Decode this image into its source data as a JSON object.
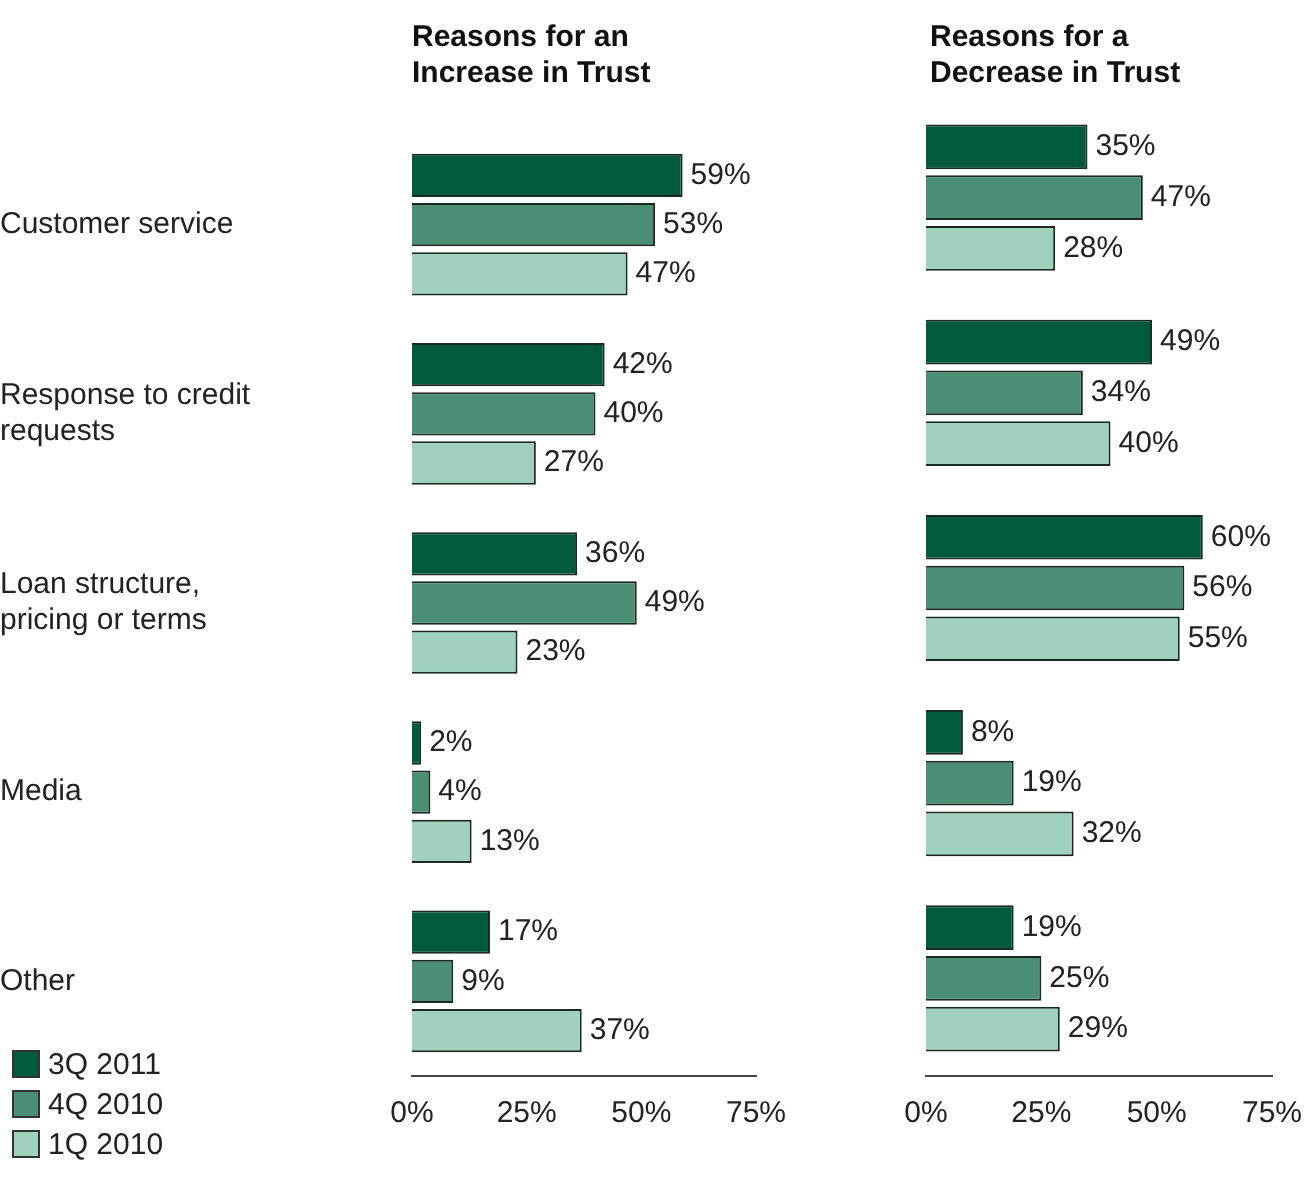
{
  "chart_data": [
    {
      "type": "bar",
      "orientation": "horizontal",
      "title": "Reasons for an Increase in Trust",
      "categories": [
        "Customer service",
        "Response to credit requests",
        "Loan structure, pricing or terms",
        "Media",
        "Other"
      ],
      "series": [
        {
          "name": "3Q 2011",
          "color": "#005a3c",
          "values": [
            59,
            42,
            36,
            2,
            17
          ],
          "value_labels": [
            "59%",
            "42%",
            "36%",
            "2%",
            "17%"
          ]
        },
        {
          "name": "4Q 2010",
          "color": "#4a8f74",
          "values": [
            53,
            40,
            49,
            4,
            9
          ],
          "value_labels": [
            "53%",
            "40%",
            "49%",
            "4%",
            "9%"
          ]
        },
        {
          "name": "1Q 2010",
          "color": "#9fd1bd",
          "values": [
            47,
            27,
            23,
            13,
            37
          ],
          "value_labels": [
            "47%",
            "27%",
            "23%",
            "13%",
            "37%"
          ]
        }
      ],
      "xlim": [
        0,
        75
      ],
      "xticks": [
        {
          "value": 0,
          "label": "0%"
        },
        {
          "value": 25,
          "label": "25%"
        },
        {
          "value": 50,
          "label": "50%"
        },
        {
          "value": 75,
          "label": "75%"
        }
      ],
      "grid": false,
      "legend": "bottom left"
    },
    {
      "type": "bar",
      "orientation": "horizontal",
      "title": "Reasons for a Decrease in Trust",
      "categories": [
        null,
        null,
        null,
        null,
        null
      ],
      "series": [
        {
          "color": "#005a3c",
          "values": [
            35,
            49,
            60,
            8,
            19
          ],
          "value_labels": [
            "35%",
            "49%",
            "60%",
            "8%",
            "19%"
          ]
        },
        {
          "color": "#4a8f74",
          "values": [
            47,
            34,
            56,
            19,
            25
          ],
          "value_labels": [
            "47%",
            "34%",
            "56%",
            "19%",
            "25%"
          ]
        },
        {
          "color": "#9fd1bd",
          "values": [
            28,
            40,
            55,
            32,
            29
          ],
          "value_labels": [
            "28%",
            "40%",
            "55%",
            "32%",
            "29%"
          ]
        }
      ],
      "xlim": [
        0,
        75
      ],
      "xticks": [
        {
          "value": 0,
          "label": "0%"
        },
        {
          "value": 25,
          "label": "25%"
        },
        {
          "value": 50,
          "label": "50%"
        },
        {
          "value": 75,
          "label": "75%"
        }
      ],
      "grid": false,
      "tick_labels": "x",
      "legend": false
    }
  ]
}
